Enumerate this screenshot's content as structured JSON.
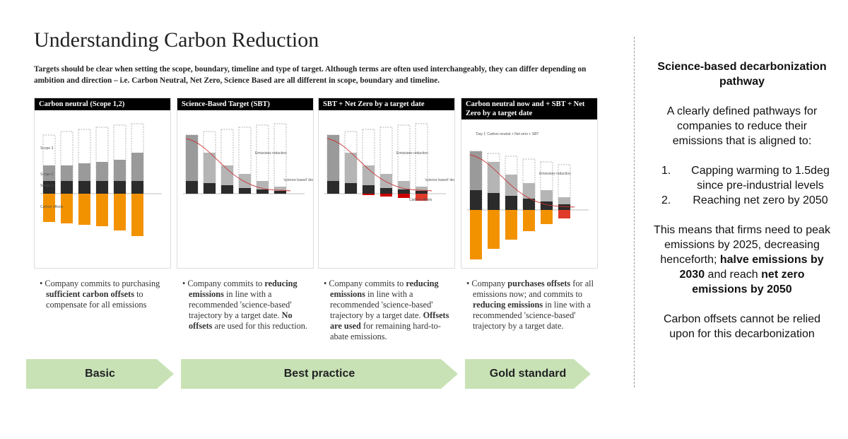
{
  "header": {
    "title": "Understanding Carbon Reduction",
    "subtitle": "Targets should be clear when setting the scope, boundary, timeline and type of target. Although terms are often used interchangeably, they can differ depending on ambition and direction – i.e. Carbon Neutral, Net Zero, Science Based are all different in scope, boundary and timeline."
  },
  "panels": [
    {
      "title": "Carbon neutral (Scope 1,2)",
      "labels": [
        "Scope 3",
        "Scope 2",
        "Scope 1",
        "Carbon offsets"
      ],
      "description": [
        {
          "text": "Company commits to purchasing ",
          "bold": false
        },
        {
          "text": "sufficient carbon offsets",
          "bold": true
        },
        {
          "text": " to compensate for all emissions",
          "bold": false
        }
      ]
    },
    {
      "title": "Science-Based Target (SBT)",
      "labels": [
        "Emissions reduction",
        "'science based' decarbonization trajectory"
      ],
      "description": [
        {
          "text": "Company commits to ",
          "bold": false
        },
        {
          "text": "reducing emissions",
          "bold": true
        },
        {
          "text": " in line with a recommended 'science-based' trajectory by a target date. ",
          "bold": false
        },
        {
          "text": "No offsets",
          "bold": true
        },
        {
          "text": " are used for this reduction.",
          "bold": false
        }
      ]
    },
    {
      "title": "SBT + Net Zero by a target date",
      "labels": [
        "Emissions reduction",
        "'science based' decarbonization trajectory",
        "Carbon offsets"
      ],
      "description": [
        {
          "text": "Company commits to ",
          "bold": false
        },
        {
          "text": "reducing emissions",
          "bold": true
        },
        {
          "text": " in line with a recommended 'science-based' trajectory by a target date. ",
          "bold": false
        },
        {
          "text": "Offsets are used",
          "bold": true
        },
        {
          "text": " for remaining hard-to-abate emissions.",
          "bold": false
        }
      ]
    },
    {
      "title": "Carbon neutral now and + SBT + Net Zero by a target date",
      "labels": [
        "'Day 1' Carbon neutral + Net zero + SBT",
        "Emissions reduction"
      ],
      "description": [
        {
          "text": "Company ",
          "bold": false
        },
        {
          "text": "purchases offsets",
          "bold": true
        },
        {
          "text": " for all emissions now; and commits to ",
          "bold": false
        },
        {
          "text": "reducing emissions",
          "bold": true
        },
        {
          "text": " in line with a recommended 'science-based' trajectory by a target date.",
          "bold": false
        }
      ]
    }
  ],
  "stages": [
    {
      "label": "Basic"
    },
    {
      "label": "Best practice"
    },
    {
      "label": "Gold standard"
    }
  ],
  "sidebar": {
    "heading": "Science-based decarbonization pathway",
    "intro": "A clearly defined pathways for companies to reduce their emissions that is aligned to:",
    "list": [
      {
        "marker": "1.",
        "text": "Capping warming to 1.5deg since pre-industrial levels"
      },
      {
        "marker": "2.",
        "text": "Reaching net zero by 2050"
      }
    ],
    "paragraph": [
      {
        "text": "This means that firms need to peak emissions by 2025, decreasing henceforth; ",
        "bold": false
      },
      {
        "text": "halve emissions by 2030",
        "bold": true
      },
      {
        "text": " and reach ",
        "bold": false
      },
      {
        "text": "net zero emissions by 2050",
        "bold": true
      }
    ],
    "closing": "Carbon offsets cannot be relied upon for this decarbonization"
  }
}
